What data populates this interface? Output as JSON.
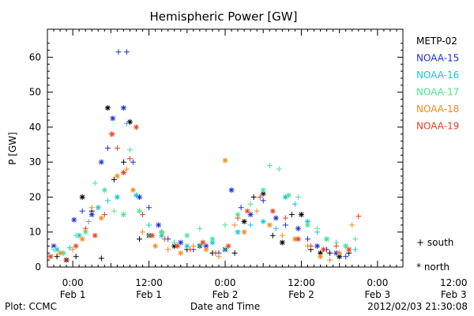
{
  "colors": {
    "METP-02": "#000000",
    "NOAA-15": "#1f2fd8",
    "NOAA-16": "#17c6d6",
    "NOAA-17": "#4ee38f",
    "NOAA-18": "#f28b1e",
    "NOAA-19": "#e8401c"
  },
  "chart_data": {
    "type": "scatter",
    "title": "Hemispheric Power [GW]",
    "xlabel": "Date and Time",
    "ylabel": "P [GW]",
    "xlim_hours": [
      -4,
      52
    ],
    "ylim": [
      0,
      68
    ],
    "x_ticks": [
      {
        "h": 0,
        "l1": "0:00",
        "l2": "Feb 1"
      },
      {
        "h": 12,
        "l1": "12:00",
        "l2": "Feb 1"
      },
      {
        "h": 24,
        "l1": "0:00",
        "l2": "Feb 2"
      },
      {
        "h": 36,
        "l1": "12:00",
        "l2": "Feb 2"
      },
      {
        "h": 48,
        "l1": "0:00",
        "l2": "Feb 3"
      },
      {
        "h": 60,
        "l1": "12:00",
        "l2": "Feb 3"
      }
    ],
    "y_ticks": [
      0,
      10,
      20,
      30,
      40,
      50,
      60
    ],
    "marker_legend": [
      {
        "symbol": "+",
        "label": "south"
      },
      {
        "symbol": "*",
        "label": "north"
      }
    ],
    "footer_left": "Plot: CCMC",
    "footer_right": "2012/02/03 21:30:08",
    "series": [
      {
        "name": "METP-02",
        "points": [
          [
            -2.5,
            3,
            "+"
          ],
          [
            -1,
            2,
            "*"
          ],
          [
            0.5,
            3,
            "+"
          ],
          [
            1.5,
            20,
            "*"
          ],
          [
            3,
            16,
            "+"
          ],
          [
            4.5,
            2.5,
            "+"
          ],
          [
            5.5,
            45.5,
            "*"
          ],
          [
            6.5,
            25,
            "+"
          ],
          [
            8,
            30,
            "+"
          ],
          [
            9,
            41.5,
            "*"
          ],
          [
            10.5,
            8,
            "+"
          ],
          [
            12,
            9,
            "*"
          ],
          [
            14,
            10,
            "+"
          ],
          [
            16,
            6,
            "*"
          ],
          [
            18,
            5,
            "+"
          ],
          [
            20,
            6,
            "*"
          ],
          [
            22,
            4,
            "+"
          ],
          [
            24,
            5,
            "*"
          ],
          [
            25.5,
            4,
            "+"
          ],
          [
            27,
            13,
            "*"
          ],
          [
            28.5,
            20,
            "+"
          ],
          [
            30,
            21,
            "*"
          ],
          [
            31.5,
            9,
            "+"
          ],
          [
            33,
            7,
            "*"
          ],
          [
            34.5,
            15,
            "+"
          ],
          [
            36,
            15,
            "*"
          ],
          [
            37.5,
            5,
            "+"
          ],
          [
            39,
            4,
            "*"
          ],
          [
            40.5,
            4,
            "+"
          ],
          [
            42,
            3,
            "*"
          ],
          [
            43.5,
            4,
            "+"
          ]
        ]
      },
      {
        "name": "NOAA-15",
        "points": [
          [
            -3,
            6,
            "*"
          ],
          [
            -1.5,
            4,
            "+"
          ],
          [
            0.2,
            13.5,
            "*"
          ],
          [
            1.5,
            16,
            "+"
          ],
          [
            3,
            15,
            "*"
          ],
          [
            4.5,
            30,
            "*"
          ],
          [
            5.5,
            34,
            "+"
          ],
          [
            6.3,
            42.5,
            "*"
          ],
          [
            7.2,
            61.5,
            "+"
          ],
          [
            8,
            45.5,
            "*"
          ],
          [
            8.5,
            61.5,
            "+"
          ],
          [
            9.5,
            30,
            "+"
          ],
          [
            10.5,
            20,
            "*"
          ],
          [
            12,
            17,
            "+"
          ],
          [
            13.5,
            12,
            "*"
          ],
          [
            15,
            8,
            "+"
          ],
          [
            17,
            7,
            "*"
          ],
          [
            19,
            5,
            "+"
          ],
          [
            21,
            6,
            "*"
          ],
          [
            23,
            4,
            "+"
          ],
          [
            25,
            22,
            "*"
          ],
          [
            26.5,
            17,
            "+"
          ],
          [
            28,
            15,
            "*"
          ],
          [
            30,
            19,
            "+"
          ],
          [
            32,
            14,
            "*"
          ],
          [
            33.5,
            12,
            "+"
          ],
          [
            35.5,
            11,
            "*"
          ],
          [
            37,
            8,
            "+"
          ],
          [
            38.5,
            6,
            "*"
          ],
          [
            40,
            5,
            "+"
          ],
          [
            41.5,
            4,
            "*"
          ],
          [
            43,
            3,
            "+"
          ]
        ]
      },
      {
        "name": "NOAA-16",
        "points": [
          [
            -2.5,
            5,
            "*"
          ],
          [
            -0.5,
            5.5,
            "+"
          ],
          [
            1,
            9,
            "*"
          ],
          [
            2.5,
            13,
            "+"
          ],
          [
            4,
            17,
            "*"
          ],
          [
            5.5,
            19,
            "+"
          ],
          [
            7,
            20,
            "*"
          ],
          [
            8.5,
            41,
            "+"
          ],
          [
            10,
            20.5,
            "*"
          ],
          [
            12,
            12,
            "+"
          ],
          [
            14,
            9,
            "*"
          ],
          [
            16,
            7,
            "+"
          ],
          [
            18,
            6,
            "*"
          ],
          [
            20,
            6,
            "+"
          ],
          [
            22,
            7,
            "*"
          ],
          [
            24,
            5,
            "+"
          ],
          [
            26,
            10,
            "*"
          ],
          [
            28,
            12,
            "+"
          ],
          [
            30,
            13,
            "*"
          ],
          [
            32,
            11,
            "+"
          ],
          [
            33.5,
            20,
            "*"
          ],
          [
            35,
            18,
            "+"
          ],
          [
            37,
            13,
            "*"
          ],
          [
            38.5,
            10,
            "+"
          ],
          [
            40,
            8,
            "*"
          ],
          [
            41.5,
            7,
            "+"
          ],
          [
            43,
            6,
            "*"
          ],
          [
            44.5,
            5,
            "+"
          ]
        ]
      },
      {
        "name": "NOAA-17",
        "points": [
          [
            -3,
            5,
            "+"
          ],
          [
            -1.5,
            4,
            "*"
          ],
          [
            0.5,
            9,
            "+"
          ],
          [
            2,
            10,
            "*"
          ],
          [
            3.5,
            24,
            "+"
          ],
          [
            5,
            22,
            "*"
          ],
          [
            6.5,
            16,
            "+"
          ],
          [
            8,
            15,
            "*"
          ],
          [
            9,
            33.5,
            "+"
          ],
          [
            10.5,
            16,
            "*"
          ],
          [
            12,
            9,
            "+"
          ],
          [
            14,
            10,
            "*"
          ],
          [
            16,
            7,
            "+"
          ],
          [
            18,
            9,
            "*"
          ],
          [
            20,
            11,
            "+"
          ],
          [
            22,
            8,
            "*"
          ],
          [
            24,
            12,
            "+"
          ],
          [
            26,
            15,
            "*"
          ],
          [
            28,
            18,
            "+"
          ],
          [
            30,
            22,
            "*"
          ],
          [
            31,
            29,
            "+"
          ],
          [
            32.5,
            28,
            "+"
          ],
          [
            34,
            20.5,
            "*"
          ],
          [
            35.5,
            20,
            "+"
          ],
          [
            37,
            12,
            "*"
          ],
          [
            38.5,
            11,
            "+"
          ],
          [
            40,
            8,
            "*"
          ],
          [
            41.5,
            7,
            "+"
          ],
          [
            43,
            6,
            "*"
          ],
          [
            44.5,
            8,
            "+"
          ]
        ]
      },
      {
        "name": "NOAA-18",
        "points": [
          [
            -2,
            4,
            "*"
          ],
          [
            0,
            5,
            "+"
          ],
          [
            1.5,
            8,
            "*"
          ],
          [
            3,
            17,
            "+"
          ],
          [
            4.5,
            14,
            "*"
          ],
          [
            6,
            38,
            "+"
          ],
          [
            7,
            26,
            "*"
          ],
          [
            8.5,
            28,
            "+"
          ],
          [
            9.5,
            22,
            "*"
          ],
          [
            11,
            10,
            "+"
          ],
          [
            13,
            6,
            "*"
          ],
          [
            15,
            5,
            "+"
          ],
          [
            17,
            4,
            "*"
          ],
          [
            19,
            6,
            "+"
          ],
          [
            21,
            5,
            "*"
          ],
          [
            23,
            3,
            "+"
          ],
          [
            24,
            30.5,
            "*"
          ],
          [
            25.5,
            12,
            "+"
          ],
          [
            27,
            10,
            "*"
          ],
          [
            29,
            16,
            "+"
          ],
          [
            31,
            12,
            "*"
          ],
          [
            33,
            9,
            "+"
          ],
          [
            35,
            8,
            "*"
          ],
          [
            37,
            6,
            "+"
          ],
          [
            39,
            3,
            "*"
          ],
          [
            40.5,
            2,
            "+"
          ],
          [
            42,
            4,
            "*"
          ],
          [
            44,
            12,
            "+"
          ]
        ]
      },
      {
        "name": "NOAA-19",
        "points": [
          [
            -3.5,
            3,
            "*"
          ],
          [
            -1,
            2,
            "+"
          ],
          [
            0.5,
            6,
            "*"
          ],
          [
            2,
            11,
            "+"
          ],
          [
            3.5,
            9,
            "*"
          ],
          [
            5,
            15,
            "+"
          ],
          [
            6.2,
            38,
            "*"
          ],
          [
            7,
            34,
            "+"
          ],
          [
            8,
            27,
            "*"
          ],
          [
            9,
            31,
            "+"
          ],
          [
            10,
            40,
            "*"
          ],
          [
            11,
            15,
            "+"
          ],
          [
            12.5,
            9,
            "*"
          ],
          [
            14.5,
            8,
            "+"
          ],
          [
            16.5,
            6,
            "*"
          ],
          [
            18.5,
            5,
            "+"
          ],
          [
            20.5,
            7,
            "*"
          ],
          [
            22.5,
            4,
            "+"
          ],
          [
            24.5,
            6,
            "*"
          ],
          [
            26,
            14,
            "+"
          ],
          [
            27.5,
            16,
            "*"
          ],
          [
            29.5,
            20,
            "+"
          ],
          [
            31.5,
            16,
            "*"
          ],
          [
            33.5,
            14,
            "+"
          ],
          [
            35.5,
            8,
            "*"
          ],
          [
            37.5,
            6,
            "+"
          ],
          [
            39.5,
            5,
            "*"
          ],
          [
            41.5,
            6,
            "+"
          ],
          [
            43.5,
            5,
            "*"
          ],
          [
            45,
            14.5,
            "+"
          ]
        ]
      }
    ]
  }
}
